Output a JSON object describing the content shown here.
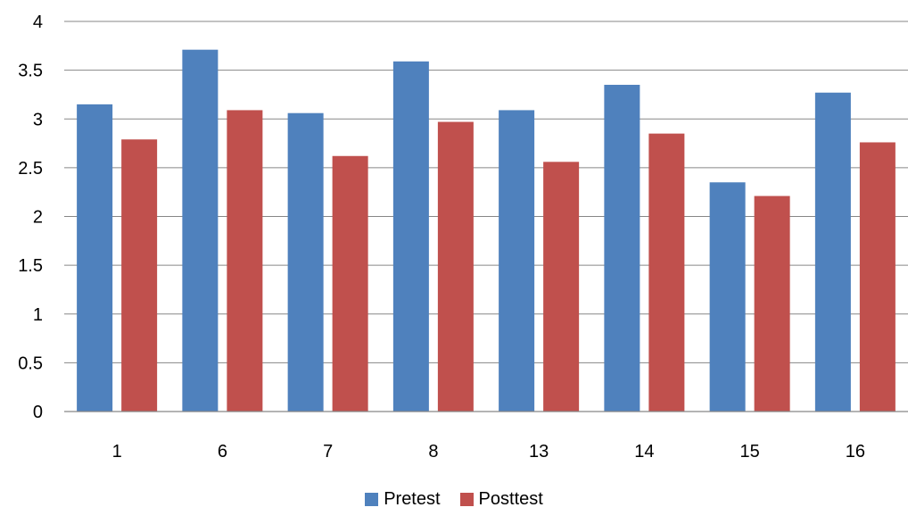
{
  "chart_data": {
    "type": "bar",
    "title": "",
    "xlabel": "",
    "ylabel": "",
    "ylim": [
      0,
      4
    ],
    "yticks": [
      "0",
      "0.5",
      "1",
      "1.5",
      "2",
      "2.5",
      "3",
      "3.5",
      "4"
    ],
    "categories": [
      "1",
      "6",
      "7",
      "8",
      "13",
      "14",
      "15",
      "16"
    ],
    "series": [
      {
        "name": "Pretest",
        "color": "#4F81BD",
        "values": [
          3.15,
          3.71,
          3.06,
          3.59,
          3.09,
          3.35,
          2.35,
          3.27
        ]
      },
      {
        "name": "Posttest",
        "color": "#C0504D",
        "values": [
          2.79,
          3.09,
          2.62,
          2.97,
          2.56,
          2.85,
          2.21,
          2.76
        ]
      }
    ],
    "grid": true,
    "legend_position": "bottom"
  }
}
